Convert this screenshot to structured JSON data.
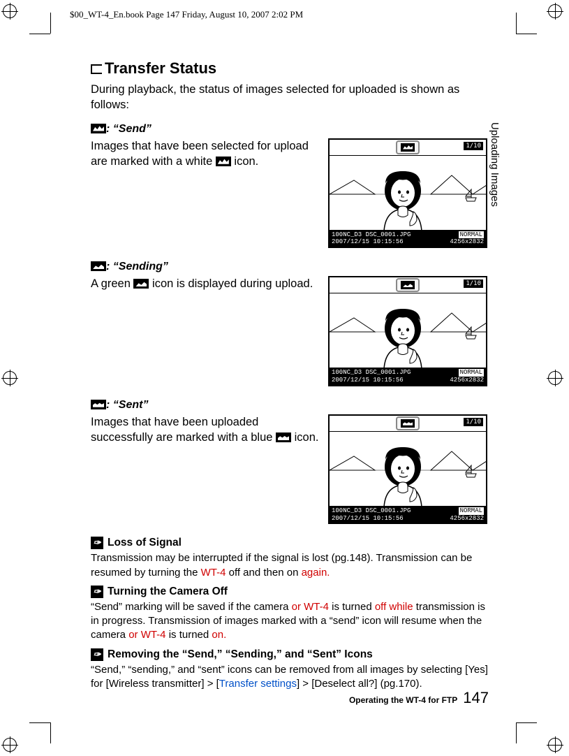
{
  "meta": {
    "header_stamp": "$00_WT-4_En.book  Page 147  Friday, August 10, 2007  2:02 PM"
  },
  "side_label": "Uploading Images",
  "page": {
    "title": "Transfer Status",
    "intro": "During playback, the status of images selected for uploaded is shown as follows:"
  },
  "statuses": [
    {
      "label": ": “Send”",
      "body_pre": "Images that have been selected for upload are marked with a white ",
      "body_post": " icon.",
      "icon_variant": "white"
    },
    {
      "label": ": “Sending”",
      "body_pre": "A green ",
      "body_post": " icon is displayed during upload.",
      "icon_variant": "green"
    },
    {
      "label": ": “Sent”",
      "body_pre": "Images that have been uploaded successfully are marked with a blue ",
      "body_post": " icon.",
      "icon_variant": "blue"
    }
  ],
  "lcd": {
    "count": "1/10",
    "footer_top_left": "100NC_D3 DSC_0001.JPG",
    "footer_top_right": "NORMAL",
    "footer_bot_left": "2007/12/15 10:15:56",
    "footer_bot_right": "4256x2832"
  },
  "notes": [
    {
      "heading": "Loss of Signal",
      "body_html": "Transmission may be interrupted if the signal is lost (pg.148). Transmission can be resumed by turning the <span class='red'>WT-4</span> off and then on <span class='red'>again.</span>"
    },
    {
      "heading": "Turning the Camera Off",
      "body_html": "“Send” marking will be saved if the camera <span class='red'>or WT-4</span> is turned <span class='red'>off while</span> transmission is in progress.  Transmission of images marked with a “send” icon will resume when the camera <span class='red'>or WT-4</span> is turned <span class='red'>on.</span>"
    },
    {
      "heading": "Removing the “Send,” “Sending,” and “Sent” Icons",
      "body_html": "“Send,” “sending,” and “sent” icons can be removed from all images by selecting [Yes] for [Wireless transmitter] &gt; [<span class='blue'>Transfer settings</span>] &gt; [Deselect all?] (pg.170)."
    }
  ],
  "footer": {
    "label": "Operating the WT-4 for FTP",
    "page_number": "147"
  },
  "colors": {
    "red": "#d00000",
    "blue": "#0050c8",
    "black": "#000000"
  }
}
